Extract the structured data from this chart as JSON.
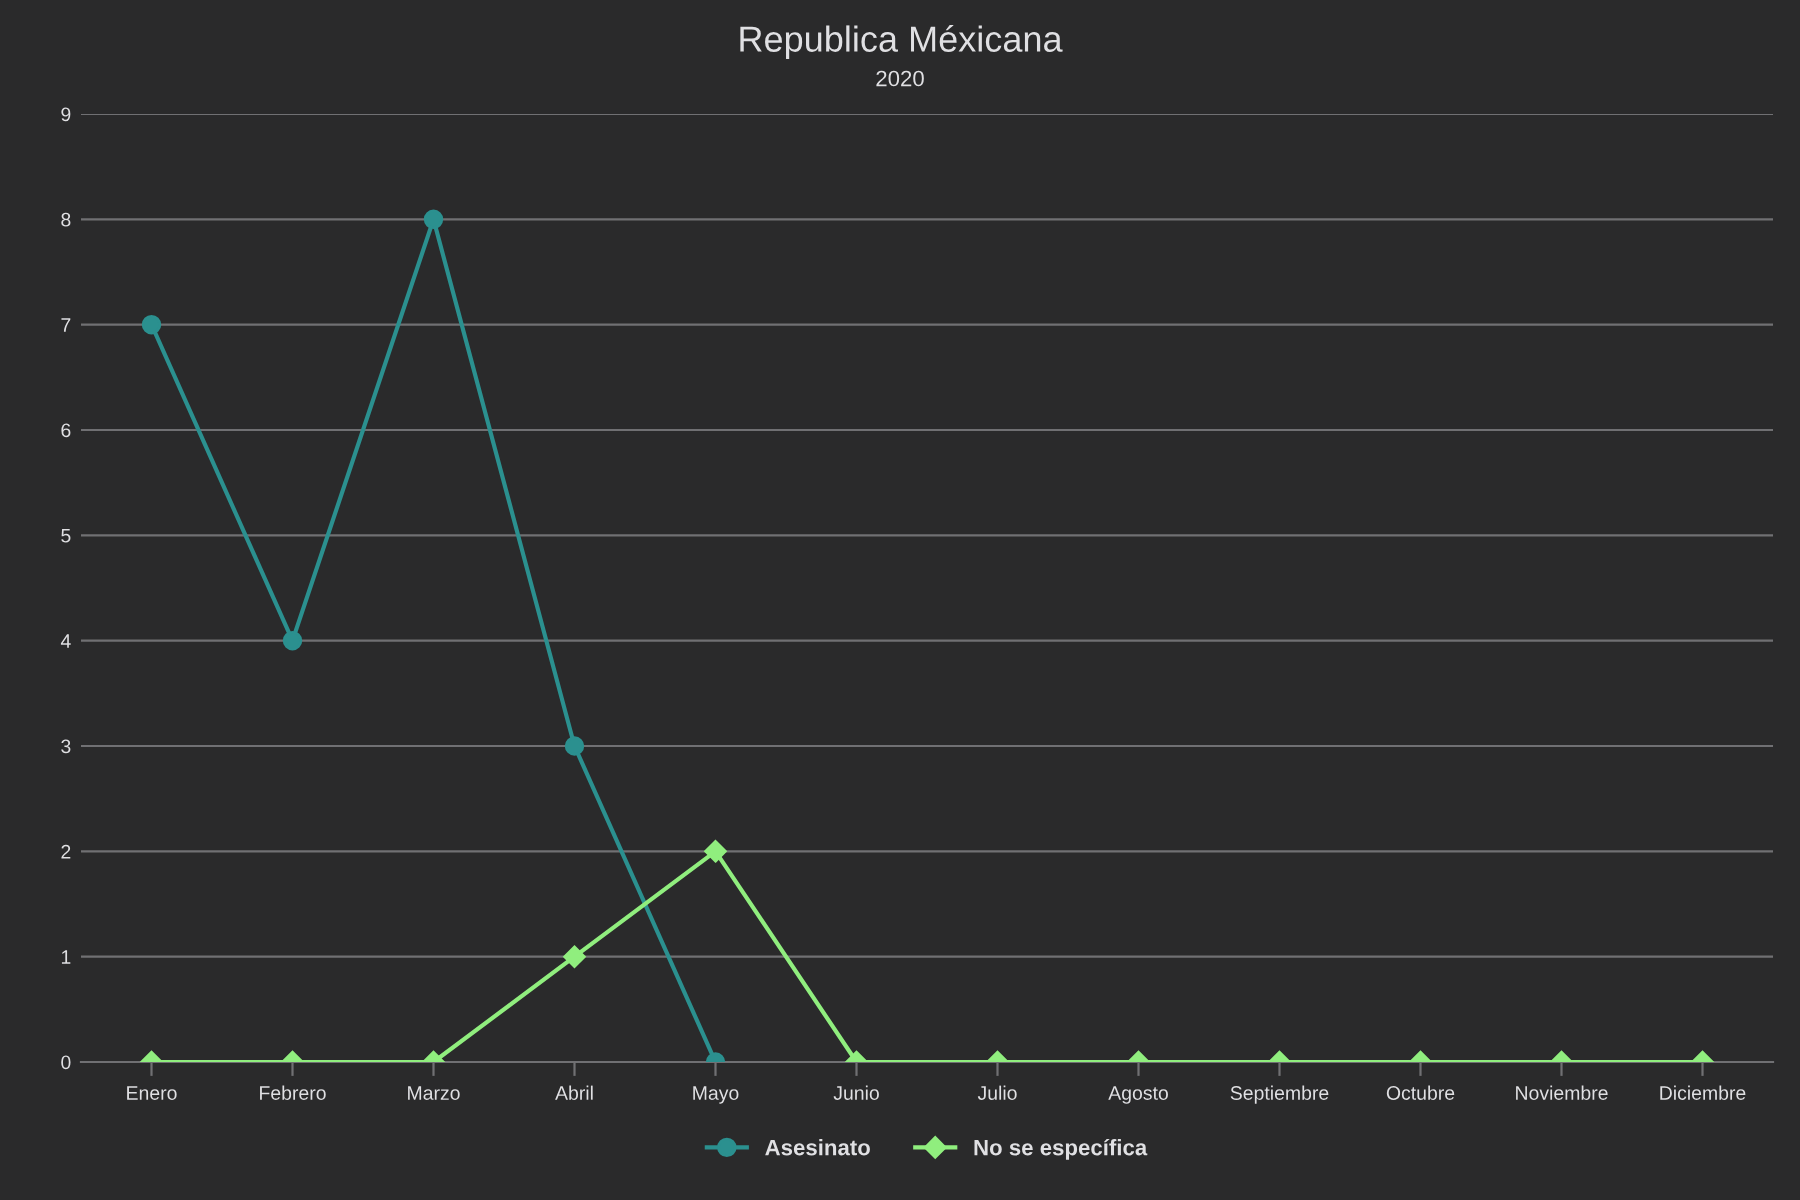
{
  "chart_data": {
    "type": "line",
    "title": "Republica Méxicana",
    "subtitle": "2020",
    "categories": [
      "Enero",
      "Febrero",
      "Marzo",
      "Abril",
      "Mayo",
      "Junio",
      "Julio",
      "Agosto",
      "Septiembre",
      "Octubre",
      "Noviembre",
      "Diciembre"
    ],
    "series": [
      {
        "name": "Asesinato",
        "color": "#2b908f",
        "marker": "circle",
        "values": [
          7,
          4,
          8,
          3,
          0,
          null,
          null,
          null,
          null,
          null,
          null,
          null
        ]
      },
      {
        "name": "No se específica",
        "color": "#90ee7e",
        "marker": "diamond",
        "values": [
          0,
          0,
          0,
          1,
          2,
          0,
          0,
          0,
          0,
          0,
          0,
          0
        ]
      }
    ],
    "ylim": [
      0,
      9
    ],
    "yticks": [
      0,
      1,
      2,
      3,
      4,
      5,
      6,
      7,
      8,
      9
    ],
    "grid": "y",
    "legend": "bottom",
    "line_style": "solid"
  }
}
